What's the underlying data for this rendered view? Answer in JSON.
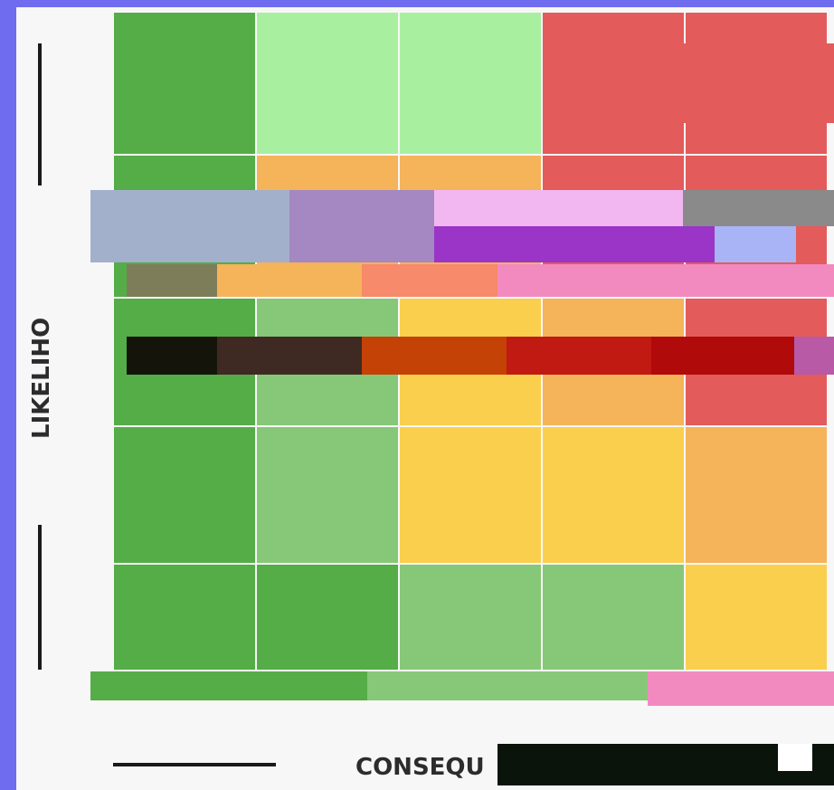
{
  "axes": {
    "y_label": "LIKELIHO",
    "x_label": "CONSEQU"
  }
}
